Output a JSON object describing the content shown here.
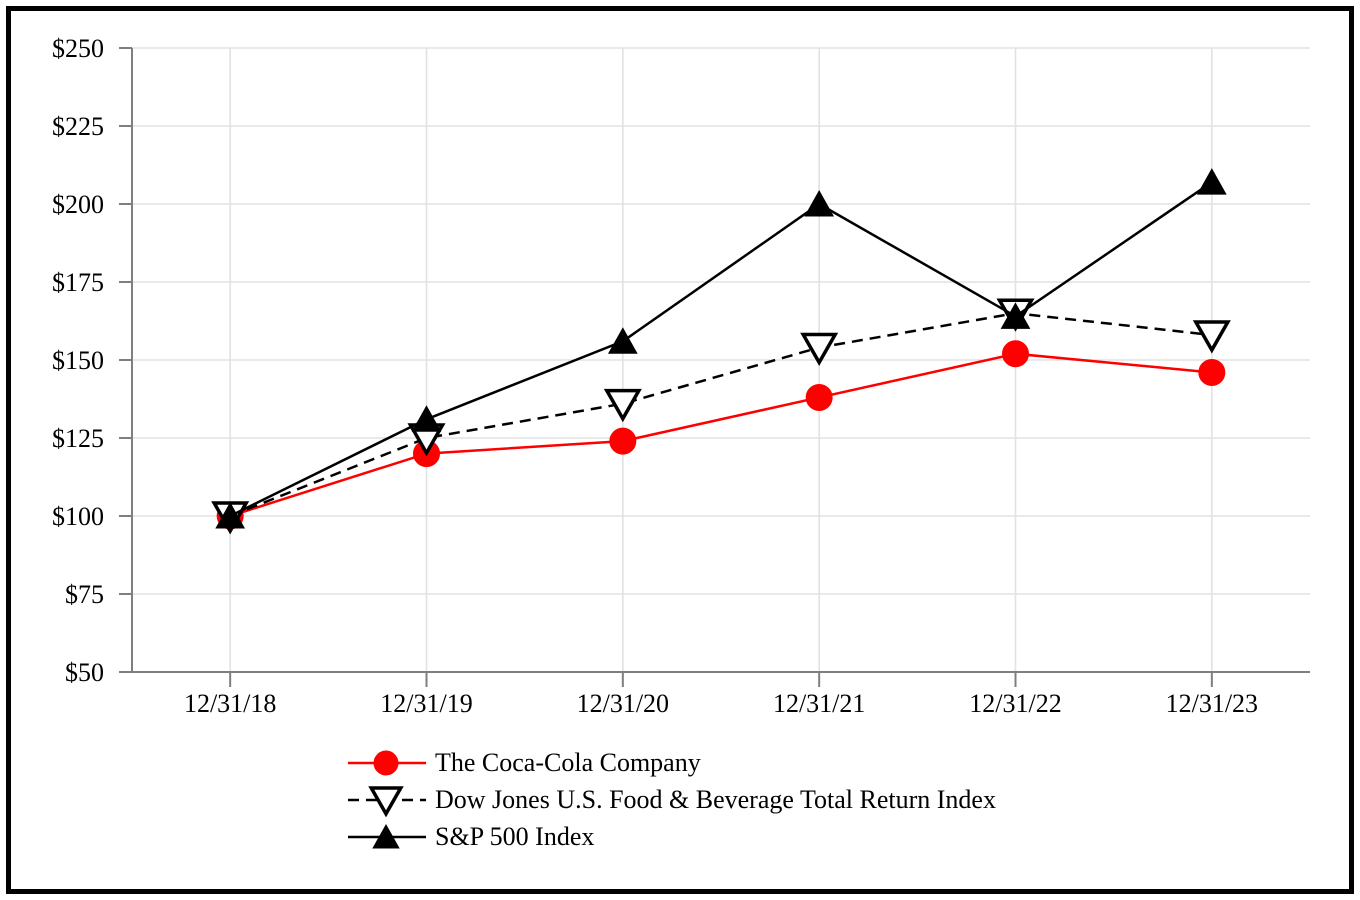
{
  "chart_data": {
    "type": "line",
    "title": "",
    "categories": [
      "12/31/18",
      "12/31/19",
      "12/31/20",
      "12/31/21",
      "12/31/22",
      "12/31/23"
    ],
    "y_axis": {
      "min": 50,
      "max": 250,
      "tick_values": [
        50,
        75,
        100,
        125,
        150,
        175,
        200,
        225,
        250
      ],
      "tick_labels": [
        "$50",
        "$75",
        "$100",
        "$125",
        "$150",
        "$175",
        "$200",
        "$225",
        "$250"
      ]
    },
    "grid": true,
    "legend_position": "bottom-left",
    "series": [
      {
        "name": "The Coca-Cola Company",
        "values": [
          100,
          120,
          124,
          138,
          152,
          146
        ],
        "color": "#ff0000",
        "line_style": "solid",
        "marker": "circle",
        "marker_fill": "#ff0000",
        "marker_stroke": "#ff0000"
      },
      {
        "name": "Dow Jones U.S. Food & Beverage Total Return Index",
        "values": [
          100,
          125,
          136,
          154,
          165,
          158
        ],
        "color": "#000000",
        "line_style": "dashed",
        "marker": "triangle-down",
        "marker_fill": "#ffffff",
        "marker_stroke": "#000000"
      },
      {
        "name": "S&P 500 Index",
        "values": [
          100,
          131,
          156,
          200,
          164,
          207
        ],
        "color": "#000000",
        "line_style": "solid",
        "marker": "triangle-up",
        "marker_fill": "#000000",
        "marker_stroke": "#000000"
      }
    ],
    "colors": {
      "gridline": "#e2e2e2",
      "axis": "#7f7f7f",
      "text": "#000000",
      "frame_border": "#000000",
      "background": "#ffffff"
    }
  }
}
